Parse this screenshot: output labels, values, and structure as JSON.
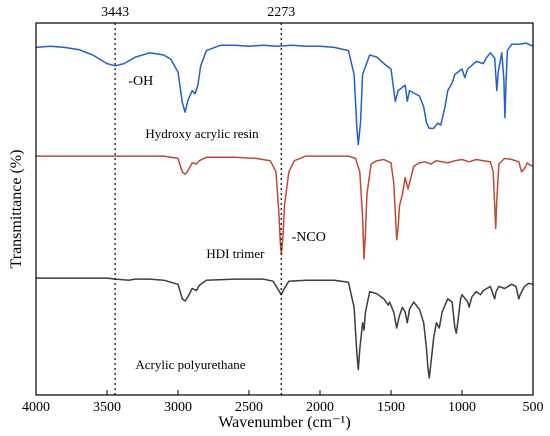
{
  "chart_data": {
    "type": "line",
    "xlabel": "Wavenumber (cm⁻¹)",
    "ylabel": "Transmittance (%)",
    "xlim": [
      4000,
      500
    ],
    "x_reversed": true,
    "y_ticks_shown": false,
    "grid": false,
    "legend": "none",
    "x_ticks": [
      {
        "value": 4000,
        "label": "4000"
      },
      {
        "value": 3500,
        "label": "3500"
      },
      {
        "value": 3000,
        "label": "3000"
      },
      {
        "value": 2500,
        "label": "2500"
      },
      {
        "value": 2000,
        "label": "2000"
      },
      {
        "value": 1500,
        "label": "1500"
      },
      {
        "value": 1000,
        "label": "1000"
      },
      {
        "value": 500,
        "label": "500"
      }
    ],
    "reference_lines": [
      {
        "x": 3443,
        "label": "3443"
      },
      {
        "x": 2273,
        "label": "2273"
      }
    ],
    "annotations": [
      {
        "text": "-OH",
        "x": 3350,
        "level": 0.62
      },
      {
        "text": "-NCO",
        "x": 2200,
        "level": 0.36
      }
    ],
    "series": [
      {
        "label": "Hydroxy acrylic resin",
        "label_x": 3230,
        "color": "#2060d0",
        "range": [
          0,
          1
        ],
        "points": [
          [
            4000,
            0.95
          ],
          [
            3900,
            0.96
          ],
          [
            3800,
            0.95
          ],
          [
            3700,
            0.93
          ],
          [
            3600,
            0.88
          ],
          [
            3500,
            0.8
          ],
          [
            3443,
            0.78
          ],
          [
            3380,
            0.8
          ],
          [
            3300,
            0.86
          ],
          [
            3200,
            0.9
          ],
          [
            3100,
            0.88
          ],
          [
            3050,
            0.84
          ],
          [
            3000,
            0.72
          ],
          [
            2970,
            0.44
          ],
          [
            2950,
            0.35
          ],
          [
            2930,
            0.46
          ],
          [
            2900,
            0.55
          ],
          [
            2880,
            0.52
          ],
          [
            2860,
            0.6
          ],
          [
            2840,
            0.78
          ],
          [
            2800,
            0.92
          ],
          [
            2700,
            0.97
          ],
          [
            2600,
            0.97
          ],
          [
            2500,
            0.96
          ],
          [
            2400,
            0.97
          ],
          [
            2300,
            0.96
          ],
          [
            2200,
            0.97
          ],
          [
            2100,
            0.96
          ],
          [
            2000,
            0.96
          ],
          [
            1900,
            0.95
          ],
          [
            1800,
            0.92
          ],
          [
            1760,
            0.7
          ],
          [
            1740,
            0.2
          ],
          [
            1730,
            0.05
          ],
          [
            1715,
            0.25
          ],
          [
            1700,
            0.7
          ],
          [
            1650,
            0.88
          ],
          [
            1600,
            0.86
          ],
          [
            1550,
            0.8
          ],
          [
            1500,
            0.75
          ],
          [
            1470,
            0.45
          ],
          [
            1450,
            0.55
          ],
          [
            1400,
            0.6
          ],
          [
            1385,
            0.45
          ],
          [
            1370,
            0.55
          ],
          [
            1300,
            0.5
          ],
          [
            1270,
            0.4
          ],
          [
            1250,
            0.25
          ],
          [
            1230,
            0.2
          ],
          [
            1200,
            0.2
          ],
          [
            1170,
            0.25
          ],
          [
            1150,
            0.23
          ],
          [
            1120,
            0.4
          ],
          [
            1100,
            0.55
          ],
          [
            1070,
            0.62
          ],
          [
            1050,
            0.7
          ],
          [
            1000,
            0.75
          ],
          [
            980,
            0.67
          ],
          [
            960,
            0.75
          ],
          [
            900,
            0.82
          ],
          [
            850,
            0.8
          ],
          [
            830,
            0.85
          ],
          [
            800,
            0.9
          ],
          [
            770,
            0.85
          ],
          [
            755,
            0.55
          ],
          [
            745,
            0.72
          ],
          [
            720,
            0.9
          ],
          [
            705,
            0.65
          ],
          [
            698,
            0.3
          ],
          [
            690,
            0.62
          ],
          [
            680,
            0.92
          ],
          [
            650,
            0.98
          ],
          [
            600,
            0.98
          ],
          [
            550,
            0.99
          ],
          [
            500,
            0.96
          ]
        ]
      },
      {
        "label": "HDI trimer",
        "label_x": 2800,
        "color": "#c04a30",
        "range": [
          0,
          1
        ],
        "points": [
          [
            4000,
            0.99
          ],
          [
            3800,
            0.99
          ],
          [
            3600,
            0.99
          ],
          [
            3500,
            0.99
          ],
          [
            3400,
            0.99
          ],
          [
            3300,
            0.99
          ],
          [
            3100,
            0.99
          ],
          [
            3000,
            0.97
          ],
          [
            2970,
            0.85
          ],
          [
            2950,
            0.83
          ],
          [
            2935,
            0.85
          ],
          [
            2900,
            0.93
          ],
          [
            2870,
            0.92
          ],
          [
            2850,
            0.95
          ],
          [
            2800,
            0.98
          ],
          [
            2600,
            0.98
          ],
          [
            2450,
            0.97
          ],
          [
            2350,
            0.95
          ],
          [
            2310,
            0.85
          ],
          [
            2290,
            0.5
          ],
          [
            2278,
            0.2
          ],
          [
            2272,
            0.12
          ],
          [
            2260,
            0.3
          ],
          [
            2250,
            0.55
          ],
          [
            2220,
            0.85
          ],
          [
            2180,
            0.95
          ],
          [
            2100,
            0.99
          ],
          [
            2000,
            0.99
          ],
          [
            1900,
            0.99
          ],
          [
            1800,
            0.99
          ],
          [
            1750,
            0.97
          ],
          [
            1720,
            0.85
          ],
          [
            1700,
            0.45
          ],
          [
            1690,
            0.08
          ],
          [
            1680,
            0.3
          ],
          [
            1670,
            0.65
          ],
          [
            1640,
            0.92
          ],
          [
            1600,
            0.95
          ],
          [
            1550,
            0.96
          ],
          [
            1500,
            0.93
          ],
          [
            1480,
            0.75
          ],
          [
            1460,
            0.25
          ],
          [
            1450,
            0.35
          ],
          [
            1440,
            0.55
          ],
          [
            1420,
            0.65
          ],
          [
            1400,
            0.8
          ],
          [
            1380,
            0.7
          ],
          [
            1360,
            0.8
          ],
          [
            1340,
            0.9
          ],
          [
            1300,
            0.93
          ],
          [
            1260,
            0.94
          ],
          [
            1220,
            0.92
          ],
          [
            1180,
            0.95
          ],
          [
            1100,
            0.93
          ],
          [
            1050,
            0.95
          ],
          [
            1000,
            0.96
          ],
          [
            950,
            0.94
          ],
          [
            900,
            0.96
          ],
          [
            850,
            0.95
          ],
          [
            800,
            0.94
          ],
          [
            780,
            0.85
          ],
          [
            770,
            0.55
          ],
          [
            763,
            0.35
          ],
          [
            755,
            0.6
          ],
          [
            740,
            0.92
          ],
          [
            700,
            0.97
          ],
          [
            650,
            0.96
          ],
          [
            600,
            0.94
          ],
          [
            580,
            0.85
          ],
          [
            560,
            0.88
          ],
          [
            540,
            0.93
          ],
          [
            520,
            0.91
          ],
          [
            500,
            0.9
          ]
        ]
      },
      {
        "label": "Acrylic polyurethane",
        "label_x": 3300,
        "color": "#3c3c3c",
        "range": [
          0,
          1
        ],
        "points": [
          [
            4000,
            0.98
          ],
          [
            3800,
            0.98
          ],
          [
            3600,
            0.98
          ],
          [
            3500,
            0.98
          ],
          [
            3443,
            0.97
          ],
          [
            3350,
            0.96
          ],
          [
            3300,
            0.97
          ],
          [
            3200,
            0.97
          ],
          [
            3100,
            0.96
          ],
          [
            3000,
            0.92
          ],
          [
            2970,
            0.78
          ],
          [
            2950,
            0.76
          ],
          [
            2930,
            0.8
          ],
          [
            2900,
            0.88
          ],
          [
            2870,
            0.86
          ],
          [
            2850,
            0.91
          ],
          [
            2800,
            0.96
          ],
          [
            2600,
            0.97
          ],
          [
            2400,
            0.97
          ],
          [
            2330,
            0.95
          ],
          [
            2290,
            0.86
          ],
          [
            2273,
            0.82
          ],
          [
            2255,
            0.87
          ],
          [
            2220,
            0.95
          ],
          [
            2100,
            0.96
          ],
          [
            2000,
            0.96
          ],
          [
            1900,
            0.96
          ],
          [
            1800,
            0.94
          ],
          [
            1760,
            0.7
          ],
          [
            1740,
            0.25
          ],
          [
            1730,
            0.1
          ],
          [
            1720,
            0.3
          ],
          [
            1700,
            0.55
          ],
          [
            1690,
            0.48
          ],
          [
            1680,
            0.65
          ],
          [
            1650,
            0.85
          ],
          [
            1600,
            0.83
          ],
          [
            1550,
            0.78
          ],
          [
            1520,
            0.72
          ],
          [
            1510,
            0.75
          ],
          [
            1480,
            0.65
          ],
          [
            1460,
            0.5
          ],
          [
            1440,
            0.62
          ],
          [
            1420,
            0.7
          ],
          [
            1400,
            0.65
          ],
          [
            1385,
            0.55
          ],
          [
            1370,
            0.68
          ],
          [
            1340,
            0.75
          ],
          [
            1300,
            0.68
          ],
          [
            1270,
            0.55
          ],
          [
            1250,
            0.3
          ],
          [
            1240,
            0.12
          ],
          [
            1230,
            0.02
          ],
          [
            1220,
            0.15
          ],
          [
            1200,
            0.4
          ],
          [
            1180,
            0.55
          ],
          [
            1160,
            0.5
          ],
          [
            1140,
            0.65
          ],
          [
            1120,
            0.72
          ],
          [
            1100,
            0.78
          ],
          [
            1070,
            0.75
          ],
          [
            1050,
            0.5
          ],
          [
            1040,
            0.45
          ],
          [
            1030,
            0.55
          ],
          [
            1010,
            0.78
          ],
          [
            1000,
            0.82
          ],
          [
            960,
            0.75
          ],
          [
            950,
            0.7
          ],
          [
            930,
            0.8
          ],
          [
            900,
            0.85
          ],
          [
            870,
            0.82
          ],
          [
            850,
            0.86
          ],
          [
            800,
            0.9
          ],
          [
            780,
            0.82
          ],
          [
            770,
            0.78
          ],
          [
            760,
            0.85
          ],
          [
            740,
            0.9
          ],
          [
            700,
            0.88
          ],
          [
            650,
            0.92
          ],
          [
            620,
            0.9
          ],
          [
            600,
            0.78
          ],
          [
            590,
            0.82
          ],
          [
            560,
            0.9
          ],
          [
            530,
            0.93
          ],
          [
            500,
            0.92
          ]
        ]
      }
    ]
  }
}
